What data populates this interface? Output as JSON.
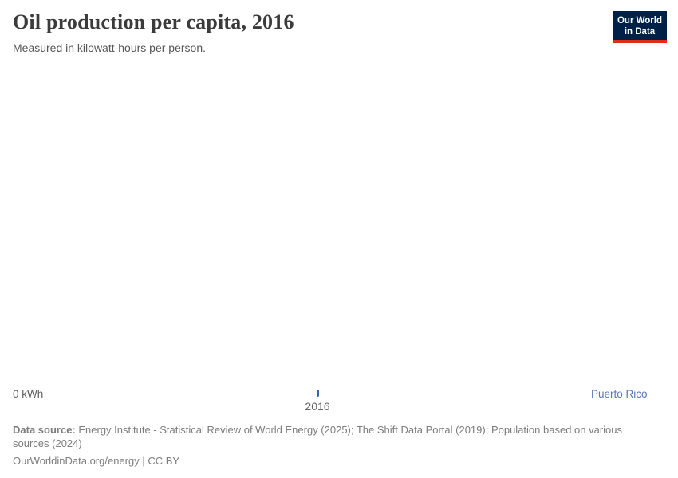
{
  "header": {
    "title": "Oil production per capita, 2016",
    "subtitle": "Measured in kilowatt-hours per person."
  },
  "logo": {
    "line1": "Our World",
    "line2": "in Data",
    "bg_color": "#002147",
    "accent_color": "#dc2d1e"
  },
  "chart_data": {
    "type": "line",
    "title": "Oil production per capita, 2016",
    "subtitle": "Measured in kilowatt-hours per person.",
    "unit": "kilowatt-hours per person",
    "x": [
      2016
    ],
    "series": [
      {
        "name": "Puerto Rico",
        "values": [
          0
        ]
      }
    ],
    "x_tick_labels": [
      "2016"
    ],
    "y_tick_labels": [
      "0 kWh"
    ],
    "ylim": [
      0,
      0
    ],
    "grid": false,
    "legend_position": "right-end-of-line",
    "axis_line_color": "#a3a3a3",
    "point_color": "#3d62a6",
    "entity_label_color": "#5879b4"
  },
  "axis": {
    "y_zero_label": "0 kWh",
    "x_tick": "2016",
    "entity_label": "Puerto Rico"
  },
  "footer": {
    "data_source_label": "Data source:",
    "data_source_text": " Energy Institute - Statistical Review of World Energy (2025); The Shift Data Portal (2019); Population based on various sources (2024)",
    "attribution": "OurWorldinData.org/energy | CC BY"
  }
}
